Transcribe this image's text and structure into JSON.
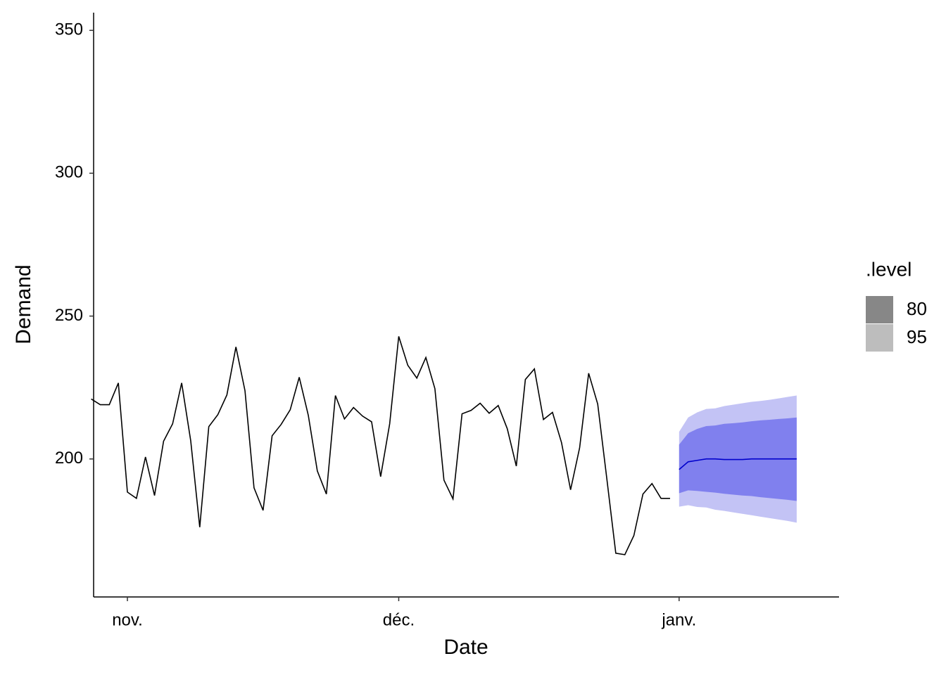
{
  "chart_data": {
    "type": "line",
    "x_label": "Date",
    "y_label": "Demand",
    "xlim": [
      0.265,
      82.68
    ],
    "ylim": [
      151.7,
      356.2
    ],
    "xticks": [
      {
        "value": 4,
        "label": "nov."
      },
      {
        "value": 34,
        "label": "déc."
      },
      {
        "value": 65,
        "label": "janv."
      }
    ],
    "yticks": [
      200,
      250,
      300,
      350
    ],
    "grid": false,
    "series": [
      {
        "color": "#000000",
        "x": [
          0,
          1,
          2,
          3,
          4,
          5,
          6,
          7,
          8,
          9,
          10,
          11,
          12,
          13,
          14,
          15,
          16,
          17,
          18,
          19,
          20,
          21,
          22,
          23,
          24,
          25,
          26,
          27,
          28,
          29,
          30,
          31,
          32,
          33,
          34,
          35,
          36,
          37,
          38,
          39,
          40,
          41,
          42,
          43,
          44,
          45,
          46,
          47,
          48,
          49,
          50,
          51,
          52,
          53,
          54,
          55,
          56,
          57,
          58,
          59,
          60,
          61,
          62,
          63,
          64
        ],
        "values": [
          221,
          219,
          219,
          226.6,
          188.4,
          186.2,
          200.7,
          187.2,
          206.2,
          212.3,
          226.6,
          206.4,
          176.1,
          211.3,
          215.5,
          222.4,
          239.2,
          223.9,
          189.9,
          182,
          208.1,
          212.1,
          217.2,
          228.6,
          215.3,
          195.8,
          187.7,
          222.2,
          214,
          218,
          215,
          213,
          193.8,
          212.3,
          242.9,
          232.8,
          228.3,
          235.5,
          224.6,
          192.6,
          186,
          215.8,
          217,
          219.5,
          216,
          218.7,
          210.6,
          197.5,
          227.8,
          231.5,
          213.8,
          216.3,
          205.7,
          189.2,
          203.9,
          230,
          219.2,
          193.3,
          167,
          166.5,
          173.2,
          187.7,
          191.4,
          186.2,
          186.2
        ]
      },
      {
        "color": "#0000cc",
        "x": [
          65,
          66,
          67,
          68,
          69,
          70,
          71,
          72,
          73,
          74,
          75,
          76,
          77,
          78
        ],
        "values": [
          196.3,
          199,
          199.5,
          200,
          200,
          199.8,
          199.8,
          199.8,
          200,
          200,
          200,
          200,
          200,
          200
        ]
      }
    ],
    "legend_title": ".level",
    "intervals": [
      {
        "name": "95",
        "color": "#c3c3f5",
        "legend_color": "#bdbdbd",
        "x": [
          65,
          66,
          67,
          68,
          69,
          70,
          71,
          72,
          73,
          74,
          75,
          76,
          77,
          78
        ],
        "upper": [
          209.5,
          214.5,
          216.3,
          217.5,
          217.7,
          218.5,
          219,
          219.5,
          220,
          220.3,
          220.7,
          221.2,
          221.7,
          222.2
        ],
        "lower": [
          183.3,
          183.8,
          183.2,
          183,
          182.2,
          181.8,
          181.3,
          180.8,
          180.3,
          179.8,
          179.3,
          178.8,
          178.3,
          177.7
        ]
      },
      {
        "name": "80",
        "color": "#8080ee",
        "legend_color": "#878787",
        "x": [
          65,
          66,
          67,
          68,
          69,
          70,
          71,
          72,
          73,
          74,
          75,
          76,
          77,
          78
        ],
        "upper": [
          205,
          209,
          210.5,
          211.5,
          211.7,
          212.3,
          212.5,
          212.8,
          213.2,
          213.5,
          213.7,
          214,
          214.2,
          214.5
        ],
        "lower": [
          188,
          189,
          188.8,
          188.5,
          188.2,
          187.8,
          187.5,
          187.2,
          187,
          186.6,
          186.3,
          186,
          185.7,
          185.3
        ]
      }
    ]
  }
}
